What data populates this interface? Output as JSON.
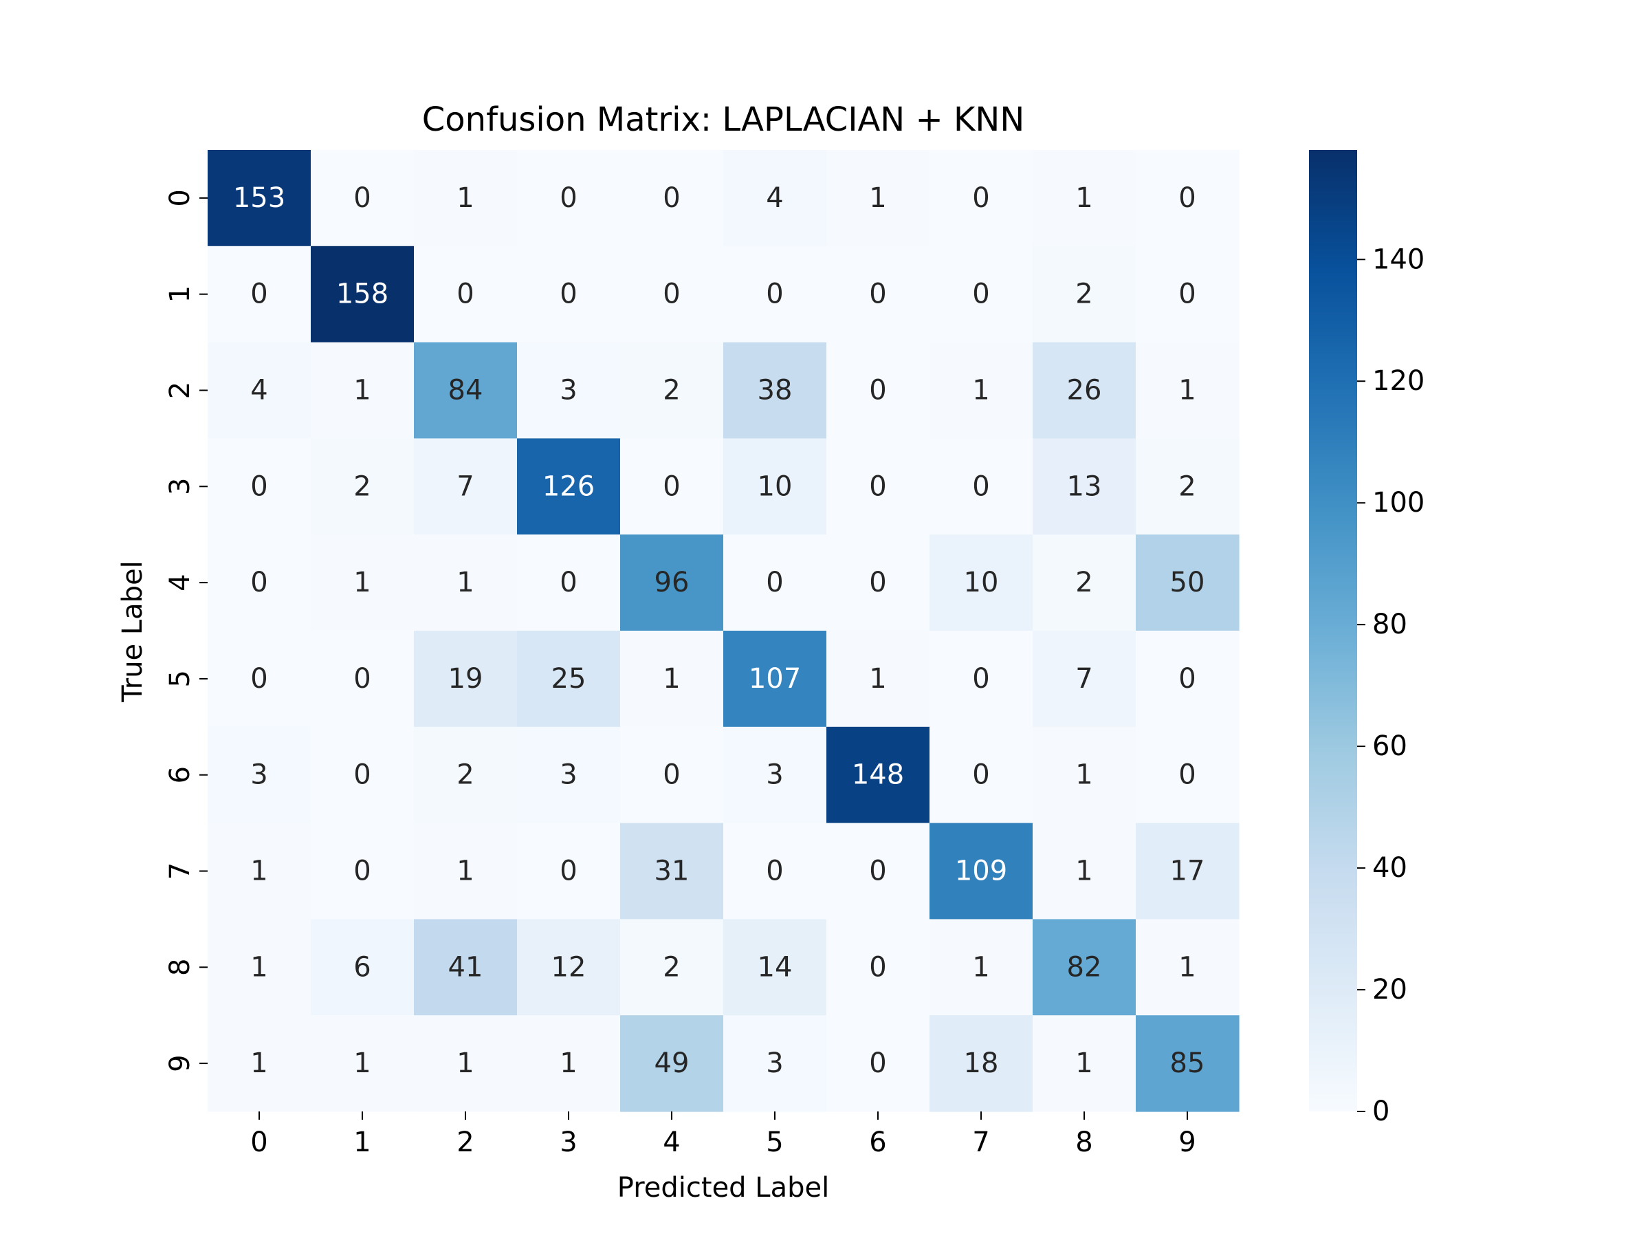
{
  "chart_data": {
    "type": "heatmap",
    "title": "Confusion Matrix: LAPLACIAN + KNN",
    "xlabel": "Predicted Label",
    "ylabel": "True Label",
    "x_categories": [
      "0",
      "1",
      "2",
      "3",
      "4",
      "5",
      "6",
      "7",
      "8",
      "9"
    ],
    "y_categories": [
      "0",
      "1",
      "2",
      "3",
      "4",
      "5",
      "6",
      "7",
      "8",
      "9"
    ],
    "values": [
      [
        153,
        0,
        1,
        0,
        0,
        4,
        1,
        0,
        1,
        0
      ],
      [
        0,
        158,
        0,
        0,
        0,
        0,
        0,
        0,
        2,
        0
      ],
      [
        4,
        1,
        84,
        3,
        2,
        38,
        0,
        1,
        26,
        1
      ],
      [
        0,
        2,
        7,
        126,
        0,
        10,
        0,
        0,
        13,
        2
      ],
      [
        0,
        1,
        1,
        0,
        96,
        0,
        0,
        10,
        2,
        50
      ],
      [
        0,
        0,
        19,
        25,
        1,
        107,
        1,
        0,
        7,
        0
      ],
      [
        3,
        0,
        2,
        3,
        0,
        3,
        148,
        0,
        1,
        0
      ],
      [
        1,
        0,
        1,
        0,
        31,
        0,
        0,
        109,
        1,
        17
      ],
      [
        1,
        6,
        41,
        12,
        2,
        14,
        0,
        1,
        82,
        1
      ],
      [
        1,
        1,
        1,
        1,
        49,
        3,
        0,
        18,
        1,
        85
      ]
    ],
    "colormap": "Blues",
    "color_range": [
      0,
      158
    ],
    "colorbar_ticks": [
      0,
      20,
      40,
      60,
      80,
      100,
      120,
      140
    ],
    "grid": false,
    "colorbar_position": "right"
  }
}
